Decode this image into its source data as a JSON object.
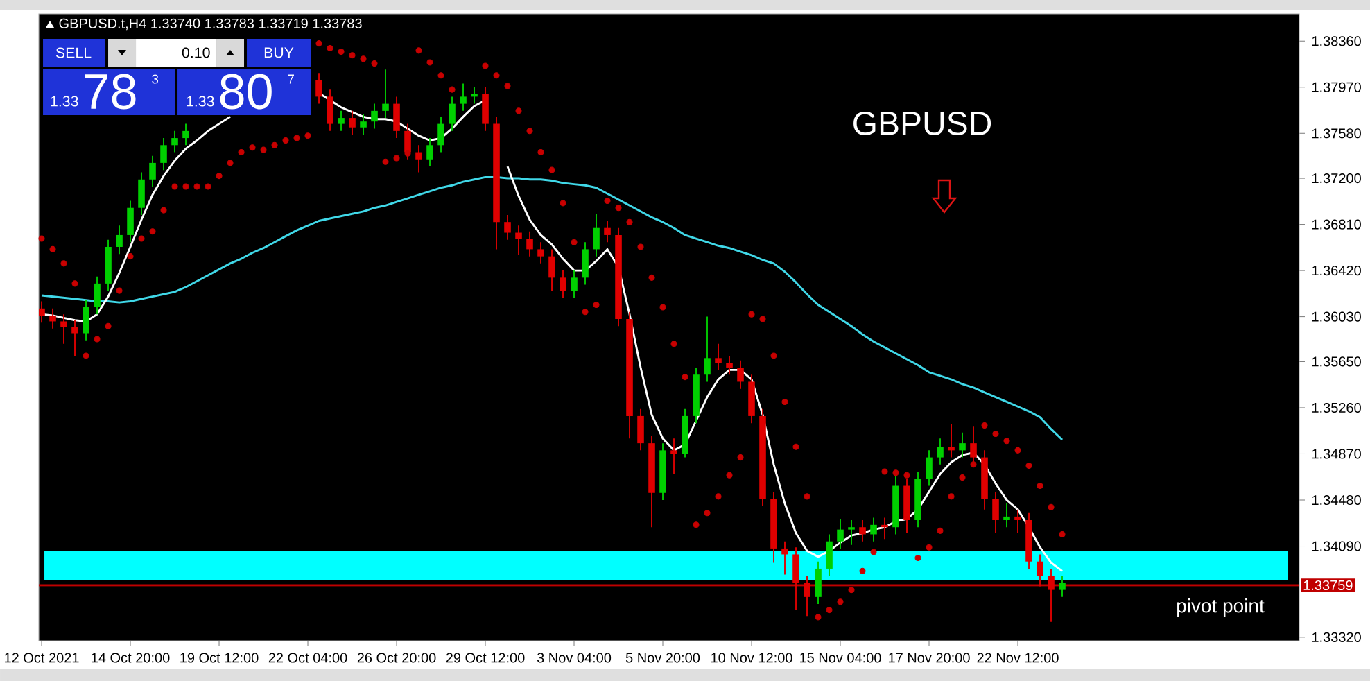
{
  "chart_data": {
    "type": "candlestick",
    "title": "GBPUSD.t,H4  1.33740 1.33783 1.33719 1.33783",
    "categories": [
      "12 Oct 2021",
      null,
      null,
      null,
      null,
      null,
      null,
      null,
      "14 Oct 20:00",
      null,
      null,
      null,
      null,
      null,
      null,
      null,
      "19 Oct 12:00",
      null,
      null,
      null,
      null,
      null,
      null,
      null,
      "22 Oct 04:00",
      null,
      null,
      null,
      null,
      null,
      null,
      null,
      "26 Oct 20:00",
      null,
      null,
      null,
      null,
      null,
      null,
      null,
      "29 Oct 12:00",
      null,
      null,
      null,
      null,
      null,
      null,
      null,
      "3 Nov 04:00",
      null,
      null,
      null,
      null,
      null,
      null,
      null,
      "5 Nov 20:00",
      null,
      null,
      null,
      null,
      null,
      null,
      null,
      "10 Nov 12:00",
      null,
      null,
      null,
      null,
      null,
      null,
      null,
      "15 Nov 04:00",
      null,
      null,
      null,
      null,
      null,
      null,
      null,
      "17 Nov 20:00",
      null,
      null,
      null,
      null,
      null,
      null,
      null,
      "22 Nov 12:00",
      null,
      null,
      null,
      null
    ],
    "ohlc": [
      [
        1.361,
        1.3616,
        1.3598,
        1.3604
      ],
      [
        1.3604,
        1.361,
        1.3593,
        1.3599
      ],
      [
        1.3599,
        1.3605,
        1.358,
        1.3594
      ],
      [
        1.3594,
        1.36,
        1.357,
        1.3589
      ],
      [
        1.3589,
        1.3617,
        1.3583,
        1.3611
      ],
      [
        1.3611,
        1.3637,
        1.3605,
        1.3631
      ],
      [
        1.3631,
        1.3668,
        1.3625,
        1.3662
      ],
      [
        1.3662,
        1.368,
        1.3656,
        1.3672
      ],
      [
        1.3672,
        1.3701,
        1.3666,
        1.3695
      ],
      [
        1.3695,
        1.3725,
        1.3689,
        1.3719
      ],
      [
        1.3719,
        1.3739,
        1.3713,
        1.3733
      ],
      [
        1.3733,
        1.3754,
        1.3727,
        1.3748
      ],
      [
        1.3748,
        1.376,
        1.3742,
        1.3754
      ],
      [
        1.3754,
        1.3766,
        1.3748,
        1.376
      ],
      null,
      null,
      null,
      null,
      null,
      null,
      null,
      null,
      null,
      null,
      null,
      [
        1.3803,
        1.3809,
        1.3783,
        1.3789
      ],
      [
        1.3789,
        1.3795,
        1.376,
        1.3766
      ],
      [
        1.3766,
        1.3777,
        1.376,
        1.3771
      ],
      [
        1.3771,
        1.3777,
        1.3757,
        1.3763
      ],
      [
        1.3763,
        1.3774,
        1.3757,
        1.3768
      ],
      [
        1.3768,
        1.3783,
        1.3762,
        1.3777
      ],
      [
        1.3777,
        1.3812,
        1.3771,
        1.3783
      ],
      [
        1.3783,
        1.3789,
        1.3754,
        1.376
      ],
      [
        1.376,
        1.3766,
        1.3736,
        1.3742
      ],
      [
        1.3742,
        1.3748,
        1.3725,
        1.3736
      ],
      [
        1.3736,
        1.3754,
        1.373,
        1.3748
      ],
      [
        1.3748,
        1.3772,
        1.3742,
        1.3766
      ],
      [
        1.3766,
        1.3789,
        1.376,
        1.3783
      ],
      [
        1.3783,
        1.38,
        1.3777,
        1.3789
      ],
      [
        1.3789,
        1.3797,
        1.3783,
        1.3791
      ],
      [
        1.3791,
        1.3797,
        1.376,
        1.3766
      ],
      [
        1.3766,
        1.3772,
        1.366,
        1.3683
      ],
      [
        1.3683,
        1.3689,
        1.3668,
        1.3674
      ],
      [
        1.3674,
        1.368,
        1.3655,
        1.3669
      ],
      [
        1.3669,
        1.3675,
        1.3654,
        1.366
      ],
      [
        1.366,
        1.3666,
        1.3648,
        1.3654
      ],
      [
        1.3654,
        1.366,
        1.3625,
        1.3636
      ],
      [
        1.3636,
        1.3642,
        1.3619,
        1.3625
      ],
      [
        1.3625,
        1.3642,
        1.3619,
        1.3636
      ],
      [
        1.3636,
        1.3666,
        1.363,
        1.366
      ],
      [
        1.366,
        1.369,
        1.3654,
        1.3678
      ],
      [
        1.3678,
        1.3684,
        1.3666,
        1.3672
      ],
      [
        1.3672,
        1.3678,
        1.3595,
        1.3601
      ],
      [
        1.3601,
        1.3607,
        1.35,
        1.3519
      ],
      [
        1.3519,
        1.3525,
        1.349,
        1.3496
      ],
      [
        1.3496,
        1.3502,
        1.3425,
        1.3454
      ],
      [
        1.3454,
        1.3496,
        1.3448,
        1.349
      ],
      [
        1.349,
        1.35,
        1.347,
        1.3487
      ],
      [
        1.3487,
        1.3525,
        1.3484,
        1.3519
      ],
      [
        1.3519,
        1.356,
        1.3513,
        1.3554
      ],
      [
        1.3554,
        1.3603,
        1.3548,
        1.3568
      ],
      [
        1.3568,
        1.358,
        1.3558,
        1.3564
      ],
      [
        1.3564,
        1.357,
        1.3554,
        1.356
      ],
      [
        1.356,
        1.3566,
        1.3542,
        1.3548
      ],
      [
        1.3548,
        1.3554,
        1.3513,
        1.3519
      ],
      [
        1.3519,
        1.3525,
        1.3443,
        1.3449
      ],
      [
        1.3449,
        1.3455,
        1.3395,
        1.3407
      ],
      [
        1.3407,
        1.3413,
        1.3385,
        1.3402
      ],
      [
        1.3402,
        1.3408,
        1.3355,
        1.3378
      ],
      [
        1.3378,
        1.3384,
        1.335,
        1.3366
      ],
      [
        1.3366,
        1.3396,
        1.336,
        1.339
      ],
      [
        1.339,
        1.3419,
        1.3384,
        1.3413
      ],
      [
        1.3413,
        1.3432,
        1.3407,
        1.3423
      ],
      [
        1.3423,
        1.3431,
        1.341,
        1.3425
      ],
      [
        1.3425,
        1.3431,
        1.3413,
        1.3419
      ],
      [
        1.3419,
        1.3433,
        1.3413,
        1.3427
      ],
      [
        1.3427,
        1.3433,
        1.3415,
        1.3425
      ],
      [
        1.3425,
        1.347,
        1.3419,
        1.346
      ],
      [
        1.346,
        1.3466,
        1.342,
        1.3431
      ],
      [
        1.3431,
        1.3472,
        1.3425,
        1.3466
      ],
      [
        1.3466,
        1.349,
        1.346,
        1.3484
      ],
      [
        1.3484,
        1.35,
        1.3478,
        1.3493
      ],
      [
        1.3493,
        1.3512,
        1.3484,
        1.349
      ],
      [
        1.349,
        1.3505,
        1.3484,
        1.3496
      ],
      [
        1.3496,
        1.351,
        1.3478,
        1.3484
      ],
      [
        1.3484,
        1.349,
        1.344,
        1.3449
      ],
      [
        1.3449,
        1.3455,
        1.342,
        1.3431
      ],
      [
        1.3431,
        1.3445,
        1.3425,
        1.3434
      ],
      [
        1.3434,
        1.344,
        1.342,
        1.3431
      ],
      [
        1.3431,
        1.3437,
        1.339,
        1.3396
      ],
      [
        1.3396,
        1.3402,
        1.3375,
        1.3384
      ],
      [
        1.3384,
        1.339,
        1.3345,
        1.3372
      ],
      [
        1.3372,
        1.3384,
        1.3366,
        1.3378
      ]
    ],
    "colors": [
      "#e00000",
      "#e00000",
      "#e00000",
      "#e00000",
      "#00d000",
      "#00d000",
      "#00d000",
      "#00d000",
      "#00d000",
      "#00d000",
      "#00d000",
      "#00d000",
      "#00d000",
      "#00d000",
      "#00d000",
      "#00d000",
      "#00d000",
      "#00d000",
      "#00d000",
      "#00d000",
      "#00d000",
      "#00d000",
      "#00d000",
      "#00d000",
      "#e00000",
      "#e00000",
      "#e00000",
      "#00d000",
      "#e00000",
      "#00d000",
      "#00d000",
      "#00d000",
      "#e00000",
      "#e00000",
      "#e00000",
      "#00d000",
      "#00d000",
      "#00d000",
      "#00d000",
      "#00d000",
      "#e00000",
      "#e00000",
      "#e00000",
      "#e00000",
      "#e00000",
      "#e00000",
      "#e00000",
      "#e00000",
      "#00d000",
      "#00d000",
      "#00d000",
      "#e00000",
      "#e00000",
      "#e00000",
      "#e00000",
      "#e00000",
      "#00d000",
      "#e00000",
      "#00d000",
      "#00d000",
      "#00d000",
      "#e00000",
      "#e00000",
      "#e00000",
      "#e00000",
      "#e00000",
      "#e00000",
      "#e00000",
      "#e00000",
      "#e00000",
      "#00d000",
      "#00d000",
      "#00d000",
      "#00d000",
      "#e00000",
      "#00d000",
      "#e00000",
      "#00d000",
      "#e00000",
      "#00d000",
      "#00d000",
      "#00d000",
      "#e00000",
      "#00d000",
      "#e00000",
      "#e00000",
      "#e00000",
      "#00d000",
      "#e00000",
      "#e00000",
      "#e00000",
      "#e00000",
      "#00d000"
    ],
    "series": [
      {
        "type": "line",
        "marker": "none",
        "color": "#40d8e8",
        "values": [
          1.3621,
          1.362,
          1.3619,
          1.3618,
          1.3617,
          1.3616,
          1.3616,
          1.3615,
          1.3616,
          1.3618,
          1.362,
          1.3622,
          1.3624,
          1.3628,
          1.3633,
          1.3638,
          1.3643,
          1.3648,
          1.3652,
          1.3657,
          1.3661,
          1.3666,
          1.3671,
          1.3676,
          1.368,
          1.3684,
          1.3686,
          1.3688,
          1.369,
          1.3692,
          1.3695,
          1.3697,
          1.37,
          1.3703,
          1.3706,
          1.3709,
          1.3712,
          1.3714,
          1.3717,
          1.3719,
          1.3721,
          1.3721,
          1.372,
          1.372,
          1.3719,
          1.3719,
          1.3718,
          1.3716,
          1.3715,
          1.3714,
          1.3712,
          1.3707,
          1.3702,
          1.3697,
          1.3692,
          1.3687,
          1.3683,
          1.3678,
          1.3672,
          1.3669,
          1.3666,
          1.3663,
          1.3661,
          1.3658,
          1.3655,
          1.3651,
          1.3648,
          1.3641,
          1.3632,
          1.3622,
          1.3613,
          1.3607,
          1.3601,
          1.3595,
          1.3588,
          1.3582,
          1.3577,
          1.3572,
          1.3567,
          1.3562,
          1.3556,
          1.3553,
          1.355,
          1.3546,
          1.3543,
          1.3539,
          1.3535,
          1.3531,
          1.3527,
          1.3523,
          1.3518,
          1.3508,
          1.3499
        ]
      },
      {
        "type": "line",
        "marker": "none",
        "color": "#ffffff",
        "values": [
          1.3605,
          1.3604,
          1.3602,
          1.36,
          1.3599,
          1.3605,
          1.362,
          1.364,
          1.3662,
          1.3685,
          1.3706,
          1.3722,
          1.3735,
          1.3745,
          1.3752,
          1.376,
          1.3766,
          1.3772,
          null,
          null,
          null,
          null,
          null,
          null,
          null,
          1.3792,
          1.3786,
          1.378,
          1.3776,
          1.3772,
          1.377,
          1.377,
          1.3768,
          1.3762,
          1.3756,
          1.3752,
          1.3754,
          1.3762,
          1.3772,
          1.3781,
          1.3786,
          null,
          1.373,
          1.3705,
          1.3685,
          1.3672,
          1.3664,
          1.3652,
          1.3642,
          1.3642,
          1.365,
          1.366,
          1.3645,
          1.3605,
          1.356,
          1.352,
          1.35,
          1.349,
          1.3495,
          1.3515,
          1.3535,
          1.355,
          1.3558,
          1.3558,
          1.355,
          1.352,
          1.3478,
          1.3445,
          1.342,
          1.3405,
          1.34,
          1.3405,
          1.3412,
          1.3418,
          1.342,
          1.3423,
          1.3425,
          1.343,
          1.3432,
          1.344,
          1.3455,
          1.347,
          1.348,
          1.3486,
          1.3488,
          1.3478,
          1.3462,
          1.3448,
          1.344,
          1.3425,
          1.3408,
          1.3395,
          1.3388
        ]
      },
      {
        "type": "scatter",
        "marker": "circle",
        "color": "#c80000",
        "values": [
          1.3669,
          1.366,
          1.3648,
          1.3631,
          1.357,
          1.3584,
          1.3595,
          1.3625,
          1.3654,
          1.3669,
          1.3675,
          1.3693,
          1.3713,
          1.3713,
          1.3713,
          1.3713,
          1.3722,
          1.3733,
          1.3742,
          1.3746,
          1.3744,
          1.3748,
          1.3752,
          1.3754,
          1.3756,
          1.3834,
          1.383,
          1.3827,
          1.3824,
          1.3821,
          1.3817,
          1.3734,
          1.3737,
          1.3741,
          1.3828,
          1.3818,
          1.3807,
          1.3795,
          null,
          null,
          1.3815,
          1.3807,
          1.3798,
          1.3777,
          1.376,
          1.3742,
          1.3727,
          1.3699,
          1.3666,
          1.3607,
          1.3613,
          1.3701,
          1.3695,
          1.3683,
          1.3662,
          1.3636,
          1.3611,
          1.358,
          1.3552,
          1.3427,
          1.3437,
          1.3451,
          1.3469,
          1.3484,
          1.3605,
          1.3601,
          1.357,
          1.3531,
          1.3493,
          1.3451,
          1.3349,
          1.3355,
          1.3362,
          1.3372,
          1.3388,
          1.3404,
          1.3472,
          1.3471,
          1.3469,
          1.3399,
          1.3408,
          1.3422,
          1.3451,
          1.3467,
          1.3478,
          1.3511,
          1.3504,
          1.3498,
          1.349,
          1.3477,
          1.346,
          1.3442,
          1.3419
        ]
      }
    ],
    "ylim": [
      1.3329,
      1.3859
    ],
    "yticks": [
      {
        "value": 1.3836,
        "label": "1.38360"
      },
      {
        "value": 1.3797,
        "label": "1.37970"
      },
      {
        "value": 1.3758,
        "label": "1.37580"
      },
      {
        "value": 1.372,
        "label": "1.37200"
      },
      {
        "value": 1.3681,
        "label": "1.36810"
      },
      {
        "value": 1.3642,
        "label": "1.36420"
      },
      {
        "value": 1.3603,
        "label": "1.36030"
      },
      {
        "value": 1.3565,
        "label": "1.35650"
      },
      {
        "value": 1.3526,
        "label": "1.35260"
      },
      {
        "value": 1.3487,
        "label": "1.34870"
      },
      {
        "value": 1.3448,
        "label": "1.34480"
      },
      {
        "value": 1.3409,
        "label": "1.34090"
      },
      {
        "value": 1.3332,
        "label": "1.33320"
      }
    ],
    "ref_lines": [
      {
        "axis": "y",
        "value": 1.33759,
        "label": "1.33759",
        "color": "#c00000"
      }
    ],
    "bands": [
      {
        "axis": "y",
        "from": 1.338,
        "to": 1.3405,
        "color": "#00ffff"
      }
    ],
    "annotations": [
      "GBPUSD",
      "pivot point",
      "SELL",
      "0.10",
      "BUY",
      "1.33",
      "78",
      "3",
      "1.33",
      "80",
      "7"
    ]
  }
}
